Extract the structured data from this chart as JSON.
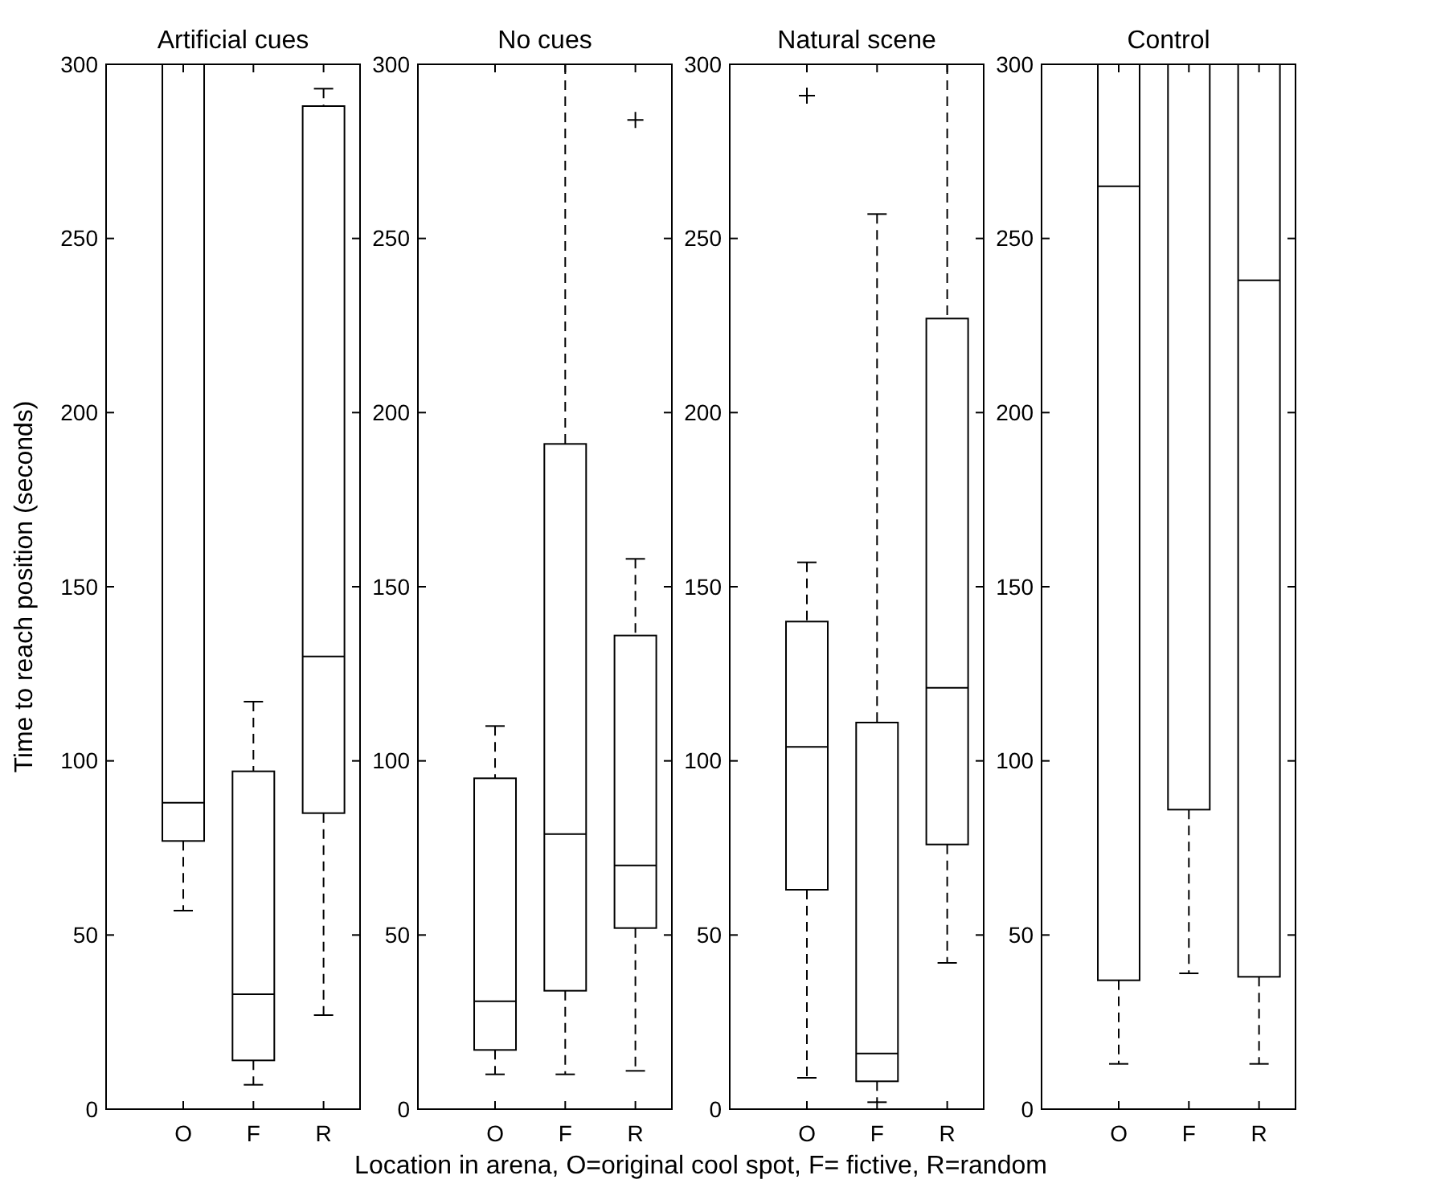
{
  "chart_data": [
    {
      "type": "box",
      "title": "Artificial cues",
      "ylabel": "Time to reach position (seconds)",
      "xlabel": "Location in arena, O=original cool spot, F= fictive, R=random",
      "categories": [
        "O",
        "F",
        "R"
      ],
      "ylim": [
        0,
        300
      ],
      "yticks": [
        0,
        50,
        100,
        150,
        200,
        250,
        300
      ],
      "boxes": [
        {
          "low": 57,
          "q1": 77,
          "median": 88,
          "q3": 300,
          "high": 300
        },
        {
          "low": 7,
          "q1": 14,
          "median": 33,
          "q3": 97,
          "high": 117
        },
        {
          "low": 27,
          "q1": 85,
          "median": 130,
          "q3": 288,
          "high": 293
        }
      ]
    },
    {
      "type": "box",
      "title": "No cues",
      "categories": [
        "O",
        "F",
        "R"
      ],
      "ylim": [
        0,
        300
      ],
      "yticks": [
        0,
        50,
        100,
        150,
        200,
        250,
        300
      ],
      "boxes": [
        {
          "low": 10,
          "q1": 17,
          "median": 31,
          "q3": 95,
          "high": 110
        },
        {
          "low": 10,
          "q1": 34,
          "median": 79,
          "q3": 191,
          "high": 300
        },
        {
          "low": 11,
          "q1": 52,
          "median": 70,
          "q3": 136,
          "high": 158,
          "outliers": [
            284
          ]
        }
      ]
    },
    {
      "type": "box",
      "title": "Natural scene",
      "categories": [
        "O",
        "F",
        "R"
      ],
      "ylim": [
        0,
        300
      ],
      "yticks": [
        0,
        50,
        100,
        150,
        200,
        250,
        300
      ],
      "boxes": [
        {
          "low": 9,
          "q1": 63,
          "median": 104,
          "q3": 140,
          "high": 157,
          "outliers": [
            291
          ]
        },
        {
          "low": 2,
          "q1": 8,
          "median": 16,
          "q3": 111,
          "high": 257
        },
        {
          "low": 42,
          "q1": 76,
          "median": 121,
          "q3": 227,
          "high": 300
        }
      ]
    },
    {
      "type": "box",
      "title": "Control",
      "categories": [
        "O",
        "F",
        "R"
      ],
      "ylim": [
        0,
        300
      ],
      "yticks": [
        0,
        50,
        100,
        150,
        200,
        250,
        300
      ],
      "boxes": [
        {
          "low": 13,
          "q1": 37,
          "median": 265,
          "q3": 300,
          "high": 300
        },
        {
          "low": 39,
          "q1": 86,
          "median": 300,
          "q3": 300,
          "high": 300
        },
        {
          "low": 13,
          "q1": 38,
          "median": 238,
          "q3": 300,
          "high": 300
        }
      ]
    }
  ]
}
